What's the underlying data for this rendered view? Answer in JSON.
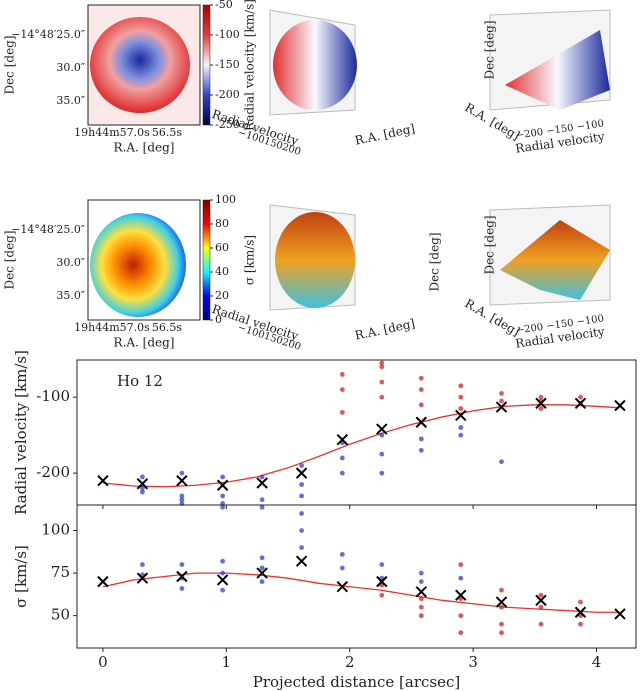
{
  "maps": [
    {
      "ylabel": "Dec [deg]",
      "xlabel": "R.A. [deg]",
      "yticklabels": [
        "−14°48′25.0″",
        "30.0″",
        "35.0″"
      ],
      "xticklabels": [
        "19h44m57.0s",
        "56.5s"
      ],
      "colorbar_label": "Radial velocity [km/s]",
      "clim": [
        -250,
        -50
      ],
      "cticks": [
        -50,
        -100,
        -150,
        -200,
        -250
      ],
      "cmap": [
        "#00004a",
        "#2848c8",
        "#f4f4ff",
        "#e83a3a",
        "#b00000"
      ]
    },
    {
      "ylabel": "Dec [deg]",
      "xlabel": "R.A. [deg]",
      "yticklabels": [
        "−14°48′25.0″",
        "30.0″",
        "35.0″"
      ],
      "xticklabels": [
        "19h44m57.0s",
        "56.5s"
      ],
      "colorbar_label": "σ [km/s]",
      "clim": [
        0,
        100
      ],
      "cticks": [
        0,
        20,
        40,
        60,
        80,
        100
      ],
      "cmap": [
        "#00007f",
        "#0000ff",
        "#00ffff",
        "#ffff00",
        "#ff0000",
        "#7f0000"
      ]
    }
  ],
  "views3d": [
    {
      "labels": [
        "Radial velocity",
        "R.A. [deg]"
      ],
      "ticks": "−100150200"
    },
    {
      "labels": [
        "Dec [deg]",
        "R.A. [deg]",
        "Radial velocity"
      ],
      "ticks": "−200 −150 −100"
    },
    {
      "labels": [
        "Radial velocity",
        "R.A. [deg]",
        "Dec [deg]"
      ],
      "ticks": "−100150200"
    },
    {
      "labels": [
        "Dec [deg]",
        "R.A. [deg]",
        "Radial velocity"
      ],
      "ticks": "−200 −150 −100"
    }
  ],
  "chart_data": [
    {
      "type": "scatter",
      "annotation": "Ho 12",
      "ylabel": "Radial velocity [km/s]",
      "xlim": [
        -0.21,
        4.32
      ],
      "ylim": [
        -242,
        -51
      ],
      "xticks": [
        0,
        1,
        2,
        3,
        4
      ],
      "yticks": [
        -100,
        -200
      ],
      "series": [
        {
          "kind": "line",
          "color": "#e8322e",
          "x": [
            0,
            0.25,
            0.5,
            0.75,
            1,
            1.25,
            1.5,
            1.75,
            2,
            2.25,
            2.5,
            2.75,
            3,
            3.25,
            3.5,
            3.75,
            4,
            4.19
          ],
          "values": [
            -213,
            -217,
            -218,
            -216,
            -212,
            -205,
            -193,
            -178,
            -162,
            -148,
            -136,
            -126,
            -118,
            -112,
            -110,
            -110,
            -112,
            -114
          ]
        },
        {
          "kind": "points",
          "color": "#2b3fd0",
          "x": [
            0.32,
            0.32,
            0.32,
            0.64,
            0.64,
            0.64,
            0.64,
            0.97,
            0.97,
            0.97,
            0.97,
            1.29,
            1.29,
            1.29,
            1.61,
            1.61,
            1.61,
            1.94,
            1.94,
            1.94,
            2.26,
            2.26,
            2.26,
            2.58,
            2.58,
            2.9,
            2.9,
            3.23
          ],
          "values": [
            -205,
            -220,
            -225,
            -200,
            -230,
            -240,
            -235,
            -205,
            -230,
            -245,
            -240,
            -205,
            -235,
            -245,
            -190,
            -215,
            -230,
            -160,
            -180,
            -200,
            -150,
            -175,
            -200,
            -155,
            -170,
            -140,
            -150,
            -185
          ]
        },
        {
          "kind": "points",
          "color": "#d42020",
          "x": [
            1.94,
            1.94,
            1.94,
            2.26,
            2.26,
            2.26,
            2.26,
            2.58,
            2.58,
            2.58,
            2.9,
            2.9,
            2.9,
            3.23,
            3.23,
            3.55,
            3.55,
            3.55,
            3.87,
            3.87
          ],
          "values": [
            -70,
            -90,
            -120,
            -55,
            -60,
            -80,
            -100,
            -75,
            -90,
            -110,
            -85,
            -100,
            -115,
            -95,
            -105,
            -100,
            -105,
            -115,
            -100,
            -108
          ]
        },
        {
          "kind": "cross",
          "color": "#000000",
          "x": [
            0,
            0.32,
            0.64,
            0.97,
            1.29,
            1.61,
            1.94,
            2.26,
            2.58,
            2.9,
            3.23,
            3.55,
            3.87,
            4.19
          ],
          "values": [
            -210,
            -214,
            -210,
            -216,
            -213,
            -200,
            -156,
            -142,
            -133,
            -124,
            -113,
            -108,
            -108,
            -111
          ]
        }
      ]
    },
    {
      "type": "scatter",
      "xlabel": "Projected distance [arcsec]",
      "ylabel": "σ [km/s]",
      "xlim": [
        -0.21,
        4.32
      ],
      "ylim": [
        31,
        115
      ],
      "xticks": [
        0,
        1,
        2,
        3,
        4
      ],
      "yticks": [
        50,
        75,
        100
      ],
      "series": [
        {
          "kind": "line",
          "color": "#e8322e",
          "x": [
            0,
            0.25,
            0.5,
            0.75,
            1,
            1.25,
            1.5,
            1.75,
            2,
            2.25,
            2.5,
            2.75,
            3,
            3.25,
            3.5,
            3.75,
            4,
            4.19
          ],
          "values": [
            67,
            71,
            73,
            75,
            75,
            74,
            72,
            69,
            67,
            65,
            62,
            59,
            57,
            55,
            54,
            53,
            52,
            52
          ]
        },
        {
          "kind": "points",
          "color": "#2b3fd0",
          "x": [
            0.32,
            0.32,
            0.64,
            0.64,
            0.64,
            0.97,
            0.97,
            0.97,
            1.29,
            1.29,
            1.29,
            1.61,
            1.61,
            1.61,
            1.94,
            1.94,
            2.26,
            2.26,
            2.58,
            2.58,
            2.9
          ],
          "values": [
            80,
            74,
            80,
            72,
            66,
            82,
            75,
            65,
            84,
            78,
            70,
            110,
            100,
            90,
            86,
            78,
            80,
            72,
            75,
            70,
            72
          ]
        },
        {
          "kind": "points",
          "color": "#d42020",
          "x": [
            2.26,
            2.26,
            2.58,
            2.58,
            2.58,
            2.9,
            2.9,
            2.9,
            2.9,
            3.23,
            3.23,
            3.23,
            3.23,
            3.55,
            3.55,
            3.55,
            3.87,
            3.87,
            3.87
          ],
          "values": [
            68,
            62,
            60,
            55,
            50,
            80,
            60,
            50,
            40,
            65,
            55,
            45,
            40,
            62,
            55,
            45,
            58,
            50,
            45
          ]
        },
        {
          "kind": "cross",
          "color": "#000000",
          "x": [
            0,
            0.32,
            0.64,
            0.97,
            1.29,
            1.61,
            1.94,
            2.26,
            2.58,
            2.9,
            3.23,
            3.55,
            3.87,
            4.19
          ],
          "values": [
            70,
            72,
            73,
            71,
            75,
            82,
            67,
            70,
            64,
            62,
            58,
            59,
            52,
            51
          ]
        }
      ]
    }
  ]
}
